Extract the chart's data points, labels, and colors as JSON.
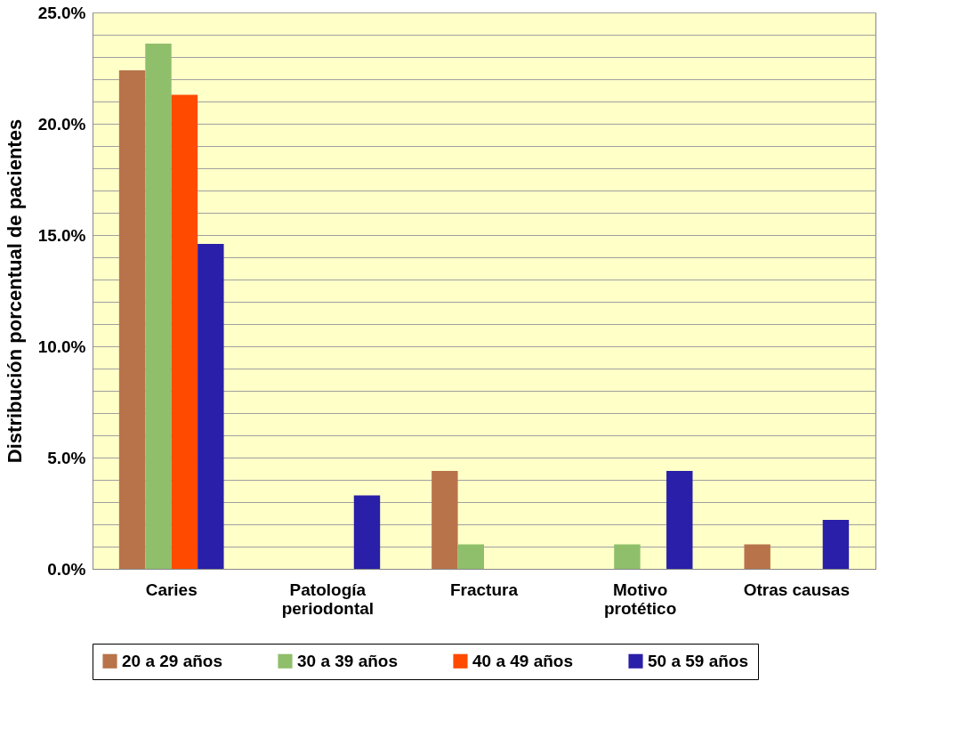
{
  "chart_data": {
    "type": "bar",
    "ylabel": "Distribución porcentual de pacientes",
    "categories": [
      "Caries",
      "Patología\nperiodontal",
      "Fractura",
      "Motivo\nprotético",
      "Otras causas"
    ],
    "series": [
      {
        "name": "20 a 29 años",
        "color": "#b8734a",
        "values": [
          22.4,
          null,
          4.4,
          null,
          1.1
        ]
      },
      {
        "name": "30 a 39 años",
        "color": "#8fbf6a",
        "values": [
          23.6,
          null,
          1.1,
          1.1,
          null
        ]
      },
      {
        "name": "40 a 49 años",
        "color": "#ff4a00",
        "values": [
          21.3,
          null,
          null,
          null,
          null
        ]
      },
      {
        "name": "50 a 59 años",
        "color": "#2a1fa8",
        "values": [
          14.6,
          3.3,
          null,
          4.4,
          2.2
        ]
      }
    ],
    "ylim": [
      0,
      25
    ],
    "yticks": [
      {
        "value": 0,
        "label": "0.0%"
      },
      {
        "value": 1,
        "label": null
      },
      {
        "value": 2,
        "label": null
      },
      {
        "value": 3,
        "label": null
      },
      {
        "value": 4,
        "label": null
      },
      {
        "value": 5,
        "label": "5.0%"
      },
      {
        "value": 6,
        "label": null
      },
      {
        "value": 7,
        "label": null
      },
      {
        "value": 8,
        "label": null
      },
      {
        "value": 9,
        "label": null
      },
      {
        "value": 10,
        "label": "10.0%"
      },
      {
        "value": 11,
        "label": null
      },
      {
        "value": 12,
        "label": null
      },
      {
        "value": 13,
        "label": null
      },
      {
        "value": 14,
        "label": null
      },
      {
        "value": 15,
        "label": "15.0%"
      },
      {
        "value": 16,
        "label": null
      },
      {
        "value": 17,
        "label": null
      },
      {
        "value": 18,
        "label": null
      },
      {
        "value": 19,
        "label": null
      },
      {
        "value": 20,
        "label": "20.0%"
      },
      {
        "value": 21,
        "label": null
      },
      {
        "value": 22,
        "label": null
      },
      {
        "value": 23,
        "label": null
      },
      {
        "value": 24,
        "label": null
      },
      {
        "value": 25,
        "label": "25.0%"
      }
    ],
    "grid": "y",
    "legend": "bottom"
  }
}
